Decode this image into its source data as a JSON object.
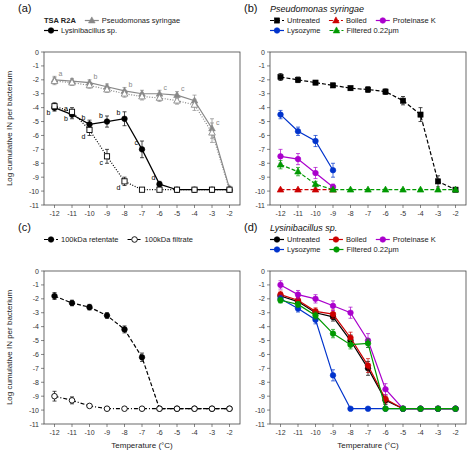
{
  "chart_data": [
    {
      "type": "line",
      "title": "(a)",
      "legend_title": "TSA  R2A",
      "y_label": "Log cumulative IN per bacterium",
      "x": [
        -12,
        -11,
        -10,
        -9,
        -8,
        -7,
        -6,
        -5,
        -4,
        -3,
        -2
      ],
      "xlim": [
        -12.6,
        -1.4
      ],
      "ylim": [
        -11,
        0
      ],
      "xticks": [
        -12,
        -11,
        -10,
        -9,
        -8,
        -7,
        -6,
        -5,
        -4,
        -3,
        -2
      ],
      "yticks": [
        0,
        -1,
        -2,
        -3,
        -4,
        -5,
        -6,
        -7,
        -8,
        -9,
        -10,
        -11
      ],
      "grid": false,
      "legend": "top",
      "series": [
        {
          "name": "Pseudomonas syringae",
          "color": "#888888",
          "marker": "triangle",
          "line_style": "solid",
          "values": [
            -2.0,
            -2.1,
            -2.2,
            -2.5,
            -2.8,
            -3.0,
            -3.0,
            -3.1,
            -3.5,
            -5.5,
            -9.8
          ],
          "errors": [
            0.25,
            0.2,
            0.2,
            0.2,
            0.25,
            0.25,
            0.25,
            0.25,
            0.4,
            0.7,
            0.15
          ],
          "point_labels": [
            "a",
            null,
            "b",
            null,
            "b",
            null,
            "c",
            "c",
            null,
            "c",
            null
          ]
        },
        {
          "color": "#888888",
          "marker": "triangle-open",
          "line_style": "dotted",
          "values": [
            -2.1,
            -2.2,
            -2.4,
            -2.7,
            -3.0,
            -3.2,
            -3.3,
            -3.5,
            -3.8,
            -5.8,
            -9.9
          ],
          "errors": [
            0.25,
            0.2,
            0.2,
            0.2,
            0.25,
            0.25,
            0.25,
            0.25,
            0.4,
            0.7,
            0.1
          ]
        },
        {
          "name": "Lysinibacillus sp.",
          "color": "#000000",
          "marker": "circle",
          "line_style": "solid",
          "values": [
            -4.0,
            -4.5,
            -5.2,
            -5.0,
            -4.8,
            -7.0,
            -9.5,
            -9.9,
            -9.9,
            -9.9,
            -9.9
          ],
          "errors": [
            0.25,
            0.3,
            0.3,
            0.4,
            0.5,
            0.6,
            0.2,
            0.05,
            0.05,
            0.05,
            0.05
          ],
          "point_labels": [
            null,
            "a",
            "b",
            "b",
            "b",
            "c",
            "d",
            null,
            null,
            null,
            null
          ]
        },
        {
          "color": "#000000",
          "marker": "square-open",
          "line_style": "dotted",
          "values": [
            -3.9,
            -4.3,
            -5.6,
            -7.5,
            -9.3,
            -9.9,
            -9.9,
            -9.9,
            -9.9,
            -9.9,
            -9.9
          ],
          "errors": [
            0.25,
            0.3,
            0.4,
            0.5,
            0.3,
            0.05,
            0.05,
            0.05,
            0.05,
            0.05,
            0.05
          ],
          "point_labels": [
            "b",
            "b",
            "d",
            "c",
            "d",
            null,
            null,
            null,
            null,
            null,
            null
          ]
        }
      ]
    },
    {
      "type": "line",
      "title": "(b)",
      "subtitle": "Pseudomonas syringae",
      "x": [
        -12,
        -11,
        -10,
        -9,
        -8,
        -7,
        -6,
        -5,
        -4,
        -3,
        -2
      ],
      "xlim": [
        -12.6,
        -1.4
      ],
      "ylim": [
        -11,
        0
      ],
      "xticks": [
        -12,
        -11,
        -10,
        -9,
        -8,
        -7,
        -6,
        -5,
        -4,
        -3,
        -2
      ],
      "yticks": [
        0,
        -1,
        -2,
        -3,
        -4,
        -5,
        -6,
        -7,
        -8,
        -9,
        -10,
        -11
      ],
      "grid": false,
      "legend": "top",
      "series": [
        {
          "name": "Untreated",
          "color": "#000000",
          "marker": "square",
          "line_style": "dashed",
          "values": [
            -1.8,
            -2.0,
            -2.2,
            -2.4,
            -2.6,
            -2.7,
            -2.85,
            -3.5,
            -4.5,
            -9.3,
            -9.9
          ],
          "errors": [
            0.25,
            0.2,
            0.15,
            0.15,
            0.15,
            0.2,
            0.2,
            0.3,
            0.5,
            0.4,
            0.05
          ]
        },
        {
          "name": "Boiled",
          "color": "#cc0000",
          "marker": "triangle",
          "line_style": "dashed",
          "values": [
            -9.9,
            -9.9,
            -9.9,
            -9.9,
            null,
            null,
            null,
            null,
            null,
            null,
            null
          ],
          "errors": [
            0.05,
            0.05,
            0.05,
            0.05,
            null,
            null,
            null,
            null,
            null,
            null,
            null
          ]
        },
        {
          "name": "Proteinase K",
          "color": "#aa00cc",
          "marker": "circle",
          "line_style": "solid",
          "values": [
            -7.5,
            -7.7,
            -8.7,
            -9.7,
            null,
            null,
            null,
            null,
            null,
            null,
            null
          ],
          "errors": [
            0.5,
            0.4,
            0.4,
            0.2,
            null,
            null,
            null,
            null,
            null,
            null,
            null
          ]
        },
        {
          "name": "Lysozyme",
          "color": "#0033cc",
          "marker": "circle",
          "line_style": "solid",
          "values": [
            -4.5,
            -5.7,
            -6.4,
            -8.5,
            null,
            null,
            null,
            null,
            null,
            null,
            null
          ],
          "errors": [
            0.3,
            0.3,
            0.4,
            0.5,
            null,
            null,
            null,
            null,
            null,
            null,
            null
          ]
        },
        {
          "name": "Filtered 0.22μm",
          "color": "#009900",
          "marker": "triangle",
          "line_style": "dashed",
          "values": [
            -8.1,
            -8.6,
            -9.5,
            -9.9,
            -9.9,
            -9.9,
            -9.9,
            -9.9,
            -9.9,
            -9.9,
            -9.9
          ],
          "errors": [
            0.3,
            0.3,
            0.2,
            0.05,
            0.05,
            0.05,
            0.05,
            0.05,
            0.05,
            0.05,
            0.05
          ]
        }
      ]
    },
    {
      "type": "line",
      "title": "(c)",
      "x_label": "Temperature (°C)",
      "y_label": "Log cumulative IN per bacterium",
      "x": [
        -12,
        -11,
        -10,
        -9,
        -8,
        -7,
        -6,
        -5,
        -4,
        -3,
        -2
      ],
      "xlim": [
        -12.6,
        -1.4
      ],
      "ylim": [
        -11,
        0
      ],
      "xticks": [
        -12,
        -11,
        -10,
        -9,
        -8,
        -7,
        -6,
        -5,
        -4,
        -3,
        -2
      ],
      "yticks": [
        0,
        -1,
        -2,
        -3,
        -4,
        -5,
        -6,
        -7,
        -8,
        -9,
        -10,
        -11
      ],
      "grid": false,
      "legend": "top",
      "series": [
        {
          "name": "100kDa retentate",
          "color": "#000000",
          "marker": "circle",
          "line_style": "dashed",
          "values": [
            -1.8,
            -2.3,
            -2.6,
            -3.2,
            -4.2,
            -6.2,
            -9.9,
            -9.9,
            -9.9,
            -9.9,
            -9.9
          ],
          "errors": [
            0.25,
            0.2,
            0.2,
            0.2,
            0.25,
            0.3,
            0.05,
            0.05,
            0.05,
            0.05,
            0.05
          ]
        },
        {
          "name": "100kDa filtrate",
          "color": "#000000",
          "marker": "circle-open",
          "line_style": "dashdot",
          "values": [
            -9.0,
            -9.3,
            -9.7,
            -9.9,
            -9.9,
            -9.9,
            -9.9,
            -9.9,
            -9.9,
            -9.9,
            -9.9
          ],
          "errors": [
            0.35,
            0.25,
            0.1,
            0.05,
            0.05,
            0.05,
            0.05,
            0.05,
            0.05,
            0.05,
            0.05
          ]
        }
      ]
    },
    {
      "type": "line",
      "title": "(d)",
      "subtitle": "Lysinibacillus sp.",
      "x_label": "Temperature (°C)",
      "x": [
        -12,
        -11,
        -10,
        -9,
        -8,
        -7,
        -6,
        -5,
        -4,
        -3,
        -2
      ],
      "xlim": [
        -12.6,
        -1.4
      ],
      "ylim": [
        -11,
        0
      ],
      "xticks": [
        -12,
        -11,
        -10,
        -9,
        -8,
        -7,
        -6,
        -5,
        -4,
        -3,
        -2
      ],
      "yticks": [
        0,
        -1,
        -2,
        -3,
        -4,
        -5,
        -6,
        -7,
        -8,
        -9,
        -10,
        -11
      ],
      "grid": false,
      "legend": "top",
      "series": [
        {
          "name": "Untreated",
          "color": "#000000",
          "marker": "circle",
          "line_style": "solid",
          "values": [
            -1.8,
            -2.2,
            -3.0,
            -3.3,
            -5.0,
            -7.0,
            -9.3,
            -9.9,
            -9.9,
            -9.9,
            -9.9
          ],
          "errors": [
            0.25,
            0.2,
            0.25,
            0.3,
            0.4,
            0.5,
            0.3,
            0.05,
            0.05,
            0.05,
            0.05
          ]
        },
        {
          "name": "Boiled",
          "color": "#cc0000",
          "marker": "circle",
          "line_style": "solid",
          "values": [
            -1.7,
            -2.1,
            -2.9,
            -3.1,
            -4.8,
            -6.8,
            -9.2,
            -9.9,
            -9.9,
            -9.9,
            -9.9
          ],
          "errors": [
            0.25,
            0.2,
            0.25,
            0.3,
            0.4,
            0.5,
            0.3,
            0.05,
            0.05,
            0.05,
            0.05
          ]
        },
        {
          "name": "Proteinase K",
          "color": "#aa00cc",
          "marker": "circle",
          "line_style": "solid",
          "values": [
            -1.0,
            -1.7,
            -2.0,
            -2.5,
            -3.0,
            -5.0,
            -8.5,
            -9.9,
            -9.9,
            -9.9,
            -9.9
          ],
          "errors": [
            0.3,
            0.3,
            0.3,
            0.35,
            0.4,
            0.5,
            0.4,
            0.05,
            0.05,
            0.05,
            0.05
          ]
        },
        {
          "name": "Lysozyme",
          "color": "#0033cc",
          "marker": "circle",
          "line_style": "solid",
          "values": [
            -2.0,
            -2.7,
            -3.5,
            -7.5,
            -9.9,
            -9.9,
            -9.9,
            -9.9,
            -9.9,
            -9.9,
            -9.9
          ],
          "errors": [
            0.25,
            0.25,
            0.3,
            0.4,
            0.05,
            0.05,
            0.05,
            0.05,
            0.05,
            0.05,
            0.05
          ]
        },
        {
          "name": "Filtered 0.22μm",
          "color": "#009900",
          "marker": "circle",
          "line_style": "solid",
          "values": [
            -2.1,
            -2.4,
            -3.2,
            -4.5,
            -5.3,
            -5.2,
            -9.9,
            -9.9,
            -9.9,
            -9.9,
            -9.9
          ],
          "errors": [
            0.2,
            0.2,
            0.25,
            0.3,
            0.3,
            0.3,
            0.05,
            0.05,
            0.05,
            0.05,
            0.05
          ]
        }
      ]
    }
  ]
}
